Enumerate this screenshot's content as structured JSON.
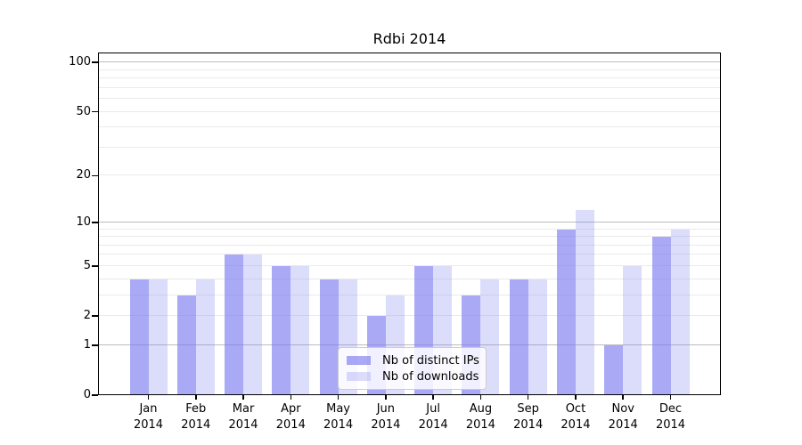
{
  "chart_data": {
    "type": "bar",
    "title": "Rdbi 2014",
    "categories": [
      "Jan",
      "Feb",
      "Mar",
      "Apr",
      "May",
      "Jun",
      "Jul",
      "Aug",
      "Sep",
      "Oct",
      "Nov",
      "Dec"
    ],
    "x_year_label": "2014",
    "series": [
      {
        "name": "Nb of distinct IPs",
        "color": "#8080f2",
        "alpha": 0.68,
        "values": [
          4,
          3,
          6,
          5,
          4,
          2,
          5,
          3,
          4,
          9,
          1,
          8
        ]
      },
      {
        "name": "Nb of downloads",
        "color": "#8080f2",
        "alpha": 0.28,
        "values": [
          4,
          4,
          6,
          5,
          4,
          3,
          5,
          4,
          4,
          12,
          5,
          9
        ]
      }
    ],
    "y_axis": {
      "scale": "log1p",
      "ticks": [
        0,
        1,
        2,
        5,
        10,
        20,
        50,
        100
      ],
      "range": [
        0,
        115
      ],
      "major_gridlines": [
        1,
        10,
        100
      ],
      "minor_gridlines": [
        2,
        3,
        4,
        5,
        6,
        7,
        8,
        9,
        20,
        30,
        40,
        50,
        60,
        70,
        80,
        90
      ]
    },
    "grid": {
      "major_color": "#bcbcbc",
      "minor_color": "#eaeaea"
    },
    "legend": {
      "position": "lower center"
    }
  }
}
